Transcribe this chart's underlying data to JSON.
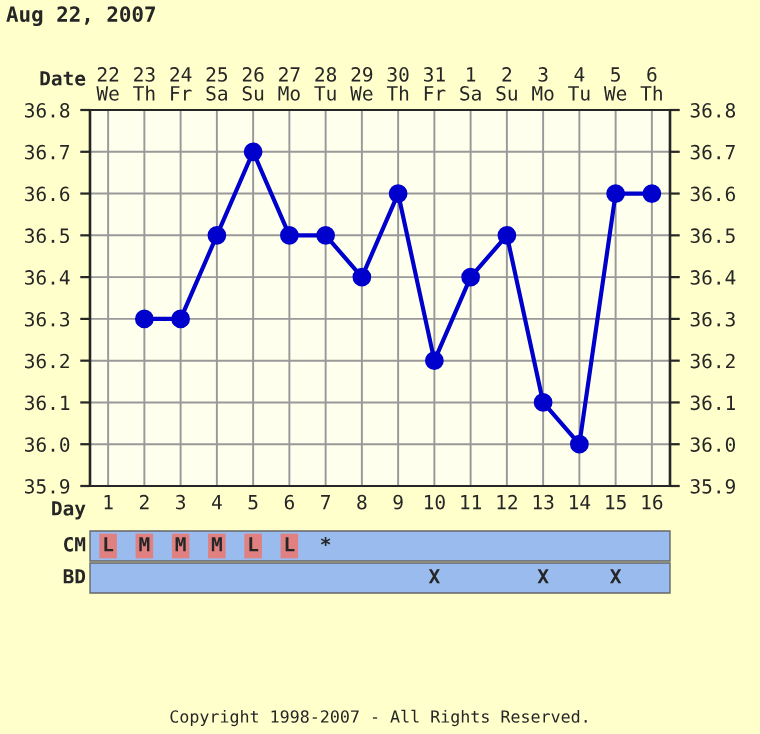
{
  "chart_data": {
    "type": "line",
    "title": "Aug 22, 2007",
    "categories": [
      "1",
      "2",
      "3",
      "4",
      "5",
      "6",
      "7",
      "8",
      "9",
      "10",
      "11",
      "12",
      "13",
      "14",
      "15",
      "16"
    ],
    "series": [
      {
        "color": "#0000cc",
        "values": [
          null,
          36.3,
          36.3,
          36.5,
          36.7,
          36.5,
          36.5,
          36.4,
          36.6,
          36.2,
          36.4,
          36.5,
          36.1,
          36.0,
          36.6,
          36.6
        ]
      }
    ],
    "xlabel": "Day",
    "x2label": "Date",
    "x2lim": [
      "2007-08-21T12:00",
      "2007-09-06T12:00"
    ],
    "x2ticks": [
      {
        "value": "2007-08-22",
        "label": "22\nWe"
      },
      {
        "value": "2007-08-23",
        "label": "23\nTh"
      },
      {
        "value": "2007-08-24",
        "label": "24\nFr"
      },
      {
        "value": "2007-08-25",
        "label": "25\nSa"
      },
      {
        "value": "2007-08-26",
        "label": "26\nSu"
      },
      {
        "value": "2007-08-27",
        "label": "27\nMo"
      },
      {
        "value": "2007-08-28",
        "label": "28\nTu"
      },
      {
        "value": "2007-08-29",
        "label": "29\nWe"
      },
      {
        "value": "2007-08-30",
        "label": "30\nTh"
      },
      {
        "value": "2007-08-31",
        "label": "31\nFr"
      },
      {
        "value": "2007-09-01",
        "label": "1\nSa"
      },
      {
        "value": "2007-09-02",
        "label": "2\nSu"
      },
      {
        "value": "2007-09-03",
        "label": "3\nMo"
      },
      {
        "value": "2007-09-04",
        "label": "4\nTu"
      },
      {
        "value": "2007-09-05",
        "label": "5\nWe"
      },
      {
        "value": "2007-09-06",
        "label": "6\nTh"
      }
    ],
    "ylim": [
      35.9,
      36.8
    ],
    "yticks": [
      35.9,
      {
        "value": 36.0,
        "label": "36.0"
      },
      36.1,
      36.2,
      36.3,
      36.4,
      36.5,
      36.6,
      36.7,
      36.8
    ],
    "y2lim": [
      35.9,
      36.8
    ],
    "y2ticks": [
      35.9,
      {
        "value": 36.0,
        "label": "36.0"
      },
      36.1,
      36.2,
      36.3,
      36.4,
      36.5,
      36.6,
      36.7,
      36.8
    ],
    "grid": true,
    "marker": "circle",
    "line_style": "solid",
    "annotations": [
      "CM",
      "LMMMLL*",
      "BD",
      "         X  X X",
      "Copyright 1998-2007 - All Rights Reserved."
    ]
  }
}
